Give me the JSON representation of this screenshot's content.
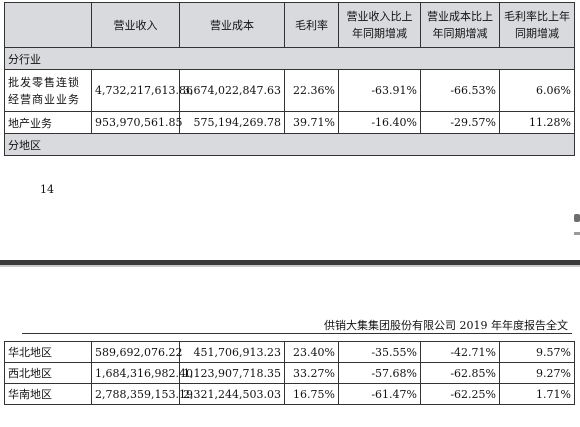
{
  "headers": [
    "",
    "营业收入",
    "营业成本",
    "毛利率",
    "营业收入比上年同期增减",
    "营业成本比上年同期增减",
    "毛利率比上年同期增减"
  ],
  "by_industry_label": "分行业",
  "industry_rows": [
    {
      "name": "批发零售连锁经营商业业务",
      "revenue": "4,732,217,613.86",
      "cost": "3,674,022,847.63",
      "margin": "22.36%",
      "rev_change": "-63.91%",
      "cost_change": "-66.53%",
      "margin_change": "6.06%"
    },
    {
      "name": "地产业务",
      "revenue": "953,970,561.85",
      "cost": "575,194,269.78",
      "margin": "39.71%",
      "rev_change": "-16.40%",
      "cost_change": "-29.57%",
      "margin_change": "11.28%"
    }
  ],
  "by_region_label": "分地区",
  "page_number": "14",
  "running_header": "供销大集集团股份有限公司 2019 年年度报告全文",
  "region_rows": [
    {
      "name": "华北地区",
      "revenue": "589,692,076.22",
      "cost": "451,706,913.23",
      "margin": "23.40%",
      "rev_change": "-35.55%",
      "cost_change": "-42.71%",
      "margin_change": "9.57%"
    },
    {
      "name": "西北地区",
      "revenue": "1,684,316,982.40",
      "cost": "1,123,907,718.35",
      "margin": "33.27%",
      "rev_change": "-57.68%",
      "cost_change": "-62.85%",
      "margin_change": "9.27%"
    },
    {
      "name": "华南地区",
      "revenue": "2,788,359,153.19",
      "cost": "2,321,244,503.03",
      "margin": "16.75%",
      "rev_change": "-61.47%",
      "cost_change": "-62.25%",
      "margin_change": "1.71%"
    }
  ]
}
